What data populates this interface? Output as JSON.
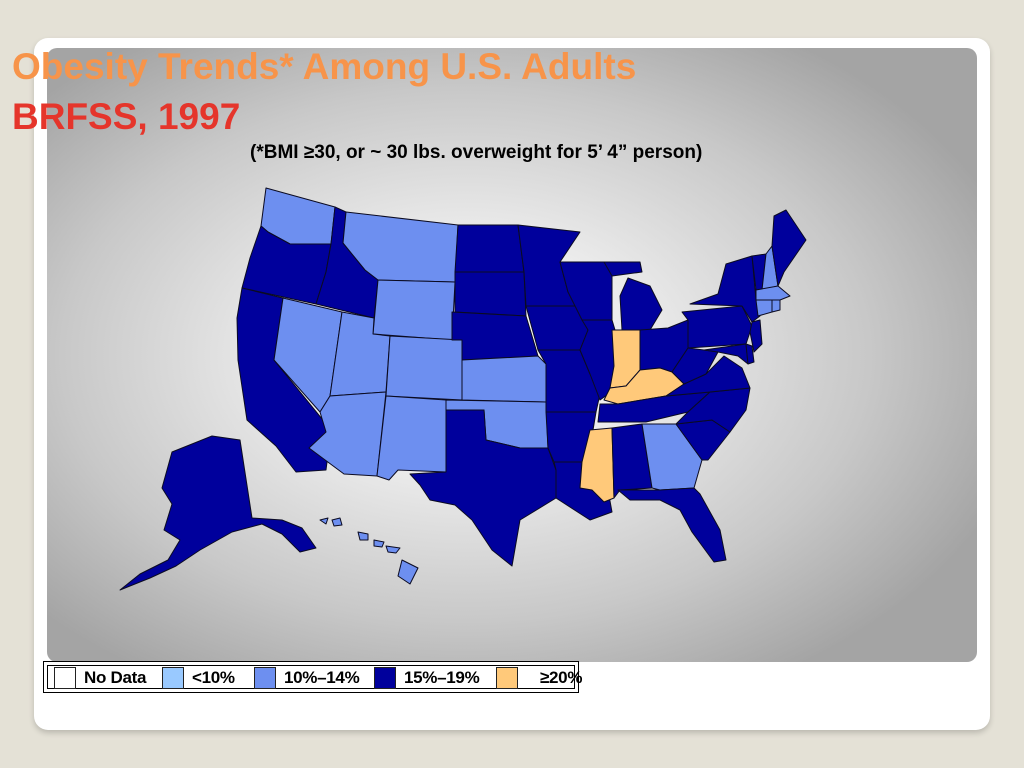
{
  "title": {
    "line1": "Obesity Trends* Among U.S. Adults",
    "line2": "BRFSS, 1997",
    "subtitle": "(*BMI ≥30, or ~ 30 lbs. overweight for 5’ 4” person)"
  },
  "colors": {
    "no_data": "#ffffff",
    "lt10": "#99c9ff",
    "p10_14": "#6d8ff0",
    "p15_19": "#00009c",
    "ge20": "#ffc97a",
    "border": "#0b0b22"
  },
  "legend": [
    {
      "key": "no_data",
      "label": "No Data"
    },
    {
      "key": "lt10",
      "label": "<10%"
    },
    {
      "key": "p10_14",
      "label": "10%–14%"
    },
    {
      "key": "p15_19",
      "label": "15%–19%"
    },
    {
      "key": "ge20",
      "label": "≥20%"
    }
  ],
  "states": {
    "WA": "p10_14",
    "OR": "p15_19",
    "CA": "p15_19",
    "NV": "p10_14",
    "ID": "p15_19",
    "MT": "p10_14",
    "WY": "p10_14",
    "UT": "p10_14",
    "AZ": "p10_14",
    "CO": "p10_14",
    "NM": "p10_14",
    "ND": "p15_19",
    "SD": "p15_19",
    "NE": "p15_19",
    "KS": "p10_14",
    "OK": "p10_14",
    "TX": "p15_19",
    "MN": "p15_19",
    "IA": "p15_19",
    "MO": "p15_19",
    "AR": "p15_19",
    "LA": "p15_19",
    "WI": "p15_19",
    "IL": "p15_19",
    "MI": "p15_19",
    "IN": "ge20",
    "OH": "p15_19",
    "KY": "ge20",
    "TN": "p15_19",
    "MS": "ge20",
    "AL": "p15_19",
    "GA": "p10_14",
    "FL": "p15_19",
    "SC": "p15_19",
    "NC": "p15_19",
    "VA": "p15_19",
    "WV": "p15_19",
    "MD": "p15_19",
    "DE": "p15_19",
    "NJ": "p15_19",
    "PA": "p15_19",
    "NY": "p15_19",
    "CT": "p10_14",
    "RI": "p10_14",
    "MA": "p10_14",
    "VT": "p15_19",
    "NH": "p10_14",
    "ME": "p15_19",
    "AK": "p15_19",
    "HI": "p10_14"
  }
}
